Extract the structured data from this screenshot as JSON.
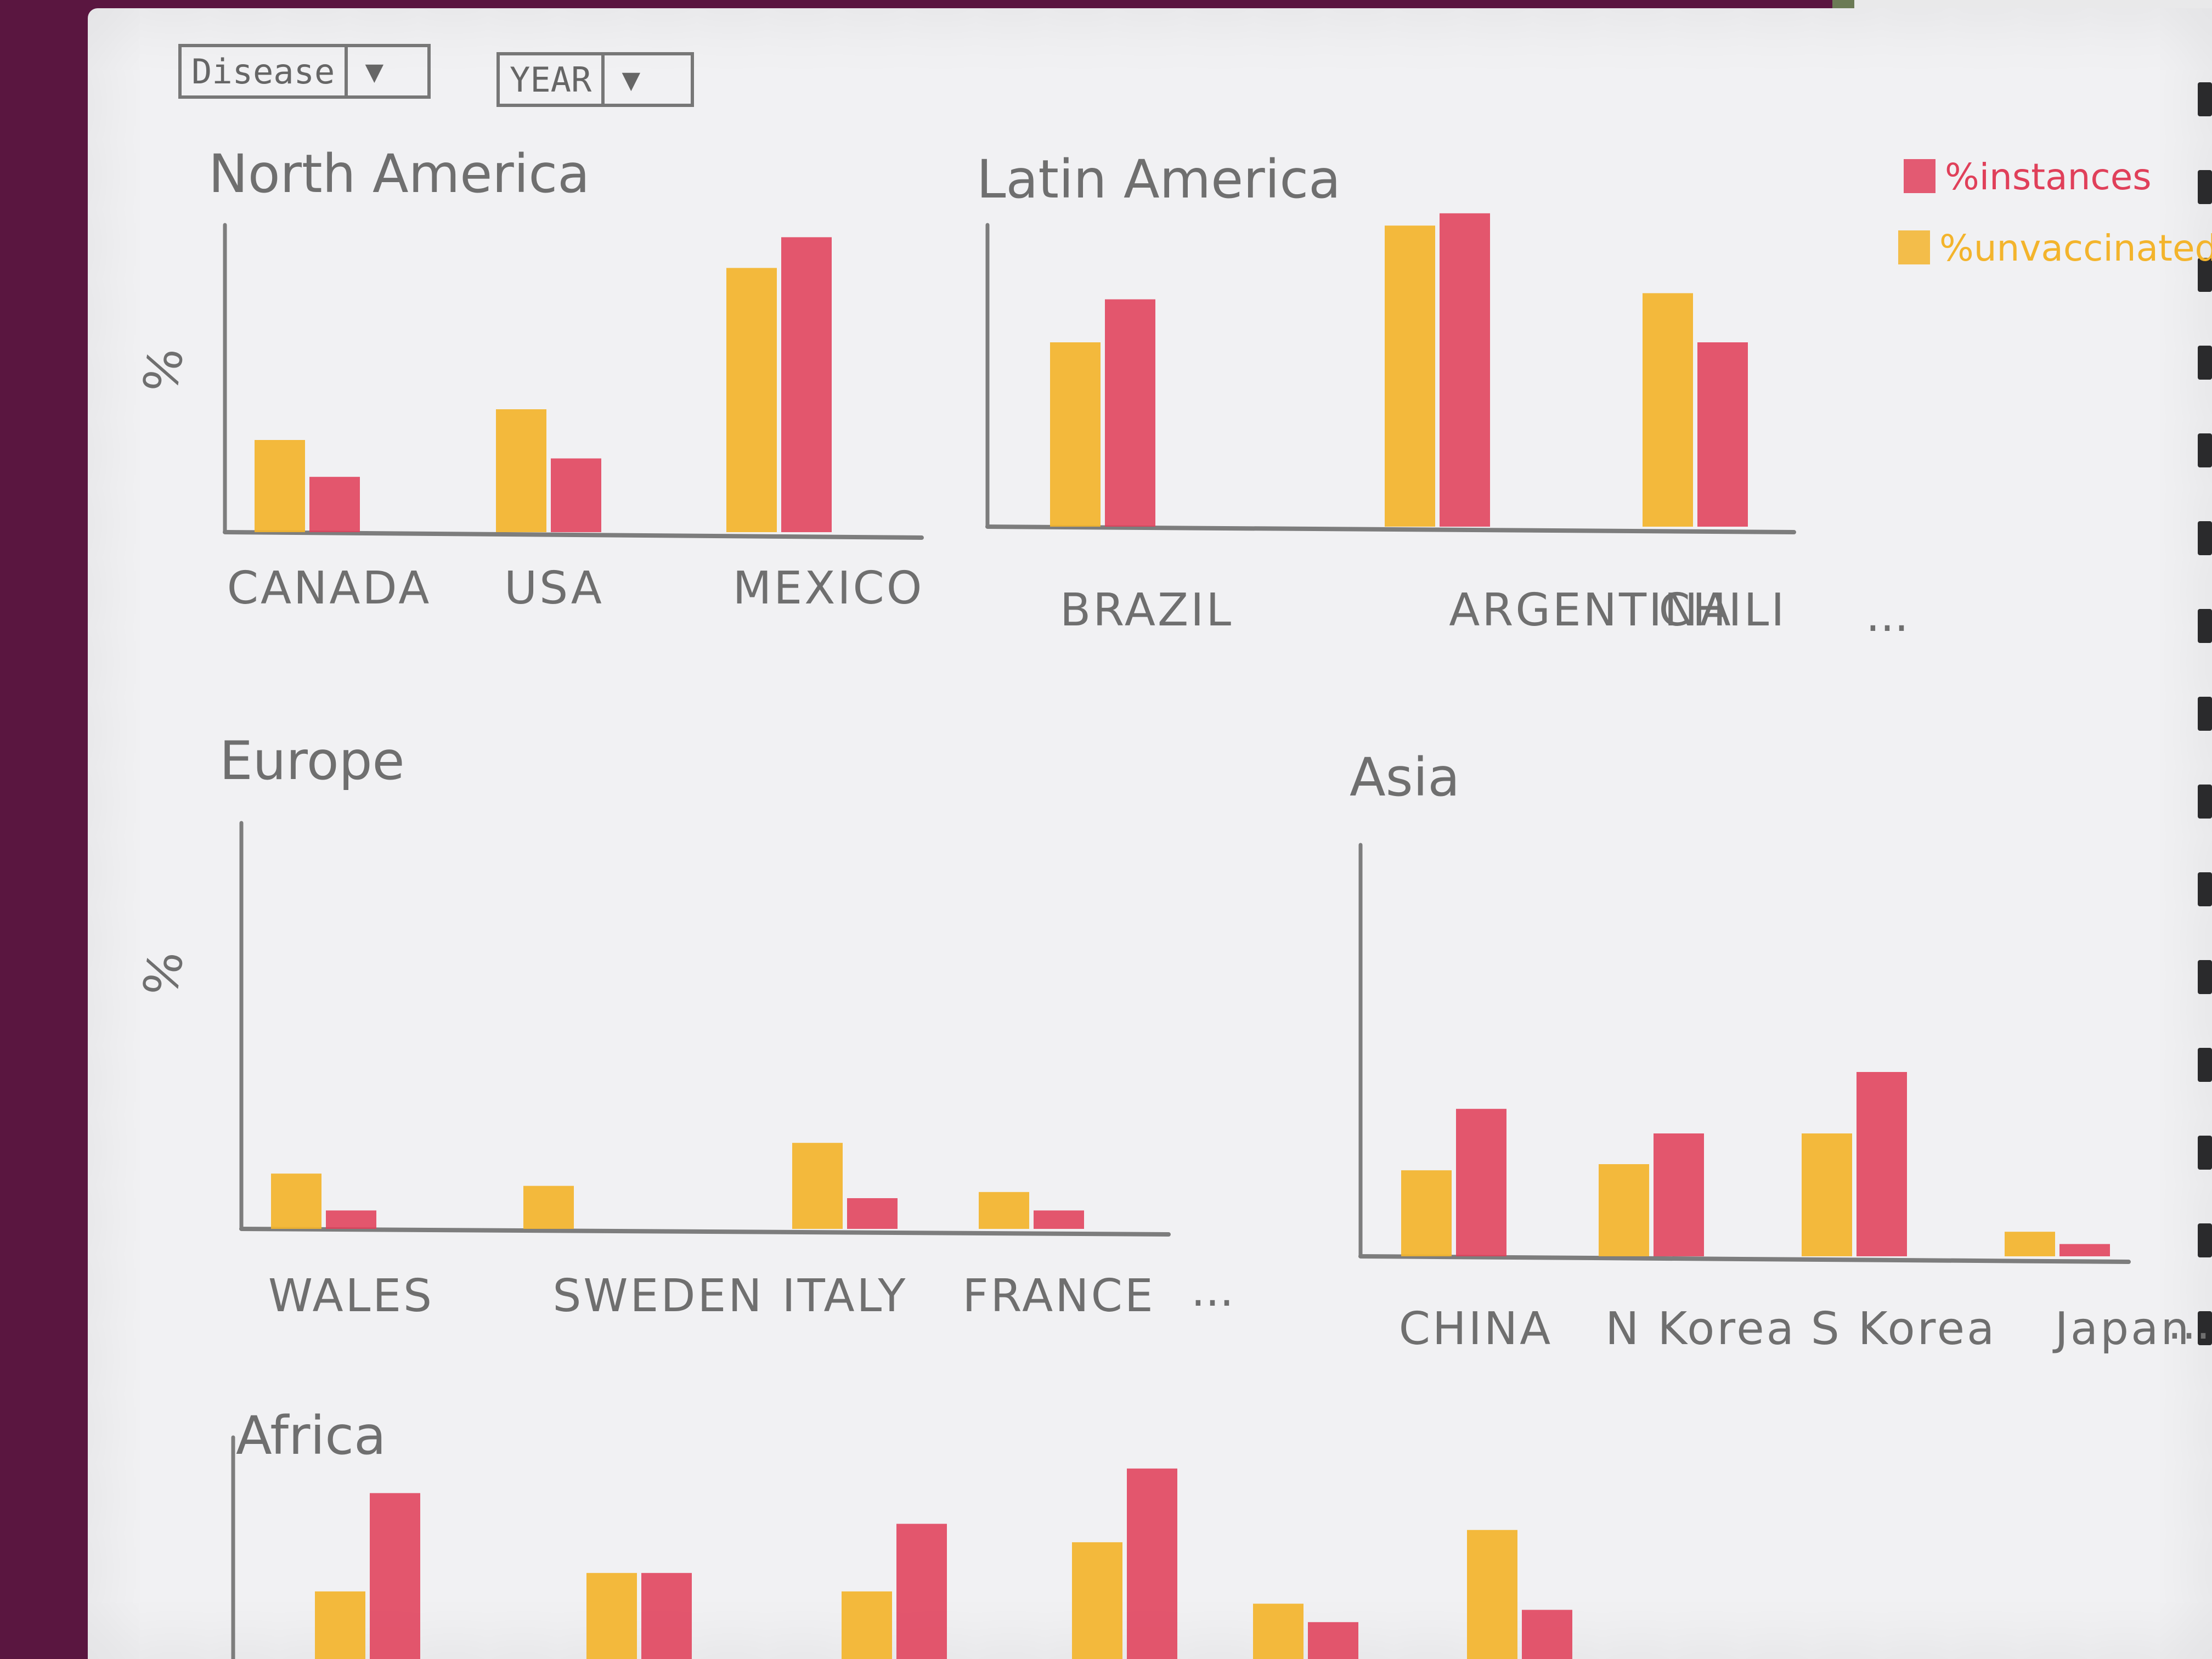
{
  "controls": {
    "disease_label": "Disease",
    "year_label": "YEAR",
    "dropdown_icon": "triangle-down"
  },
  "legend": {
    "items": [
      {
        "label": "%instances",
        "color": "#e0405a"
      },
      {
        "label": "%unvaccinated",
        "color": "#f3b42c"
      }
    ]
  },
  "colors": {
    "yellow": "#f3b42c",
    "red": "#e0405a",
    "axis": "#7d7d7d",
    "ink": "#6f6f6f"
  },
  "chart_data": [
    {
      "type": "bar",
      "title": "North America",
      "ylabel": "%",
      "categories": [
        "CANADA",
        "USA",
        "MEXICO"
      ],
      "series": [
        {
          "name": "%unvaccinated",
          "values": [
            15,
            20,
            43
          ]
        },
        {
          "name": "%instances",
          "values": [
            9,
            12,
            48
          ]
        }
      ],
      "ylim": [
        0,
        100
      ],
      "trailing": ""
    },
    {
      "type": "bar",
      "title": "Latin America",
      "ylabel": "",
      "categories": [
        "BRAZIL",
        "ARGENTINA",
        "CHILI"
      ],
      "series": [
        {
          "name": "%unvaccinated",
          "values": [
            30,
            49,
            38
          ]
        },
        {
          "name": "%instances",
          "values": [
            37,
            51,
            30
          ]
        }
      ],
      "ylim": [
        0,
        100
      ],
      "trailing": "..."
    },
    {
      "type": "bar",
      "title": "Europe",
      "ylabel": "%",
      "categories": [
        "WALES",
        "SWEDEN",
        "ITALY",
        "FRANCE"
      ],
      "series": [
        {
          "name": "%unvaccinated",
          "values": [
            9,
            7,
            14,
            6
          ]
        },
        {
          "name": "%instances",
          "values": [
            3,
            0,
            5,
            3
          ]
        }
      ],
      "ylim": [
        0,
        100
      ],
      "trailing": "..."
    },
    {
      "type": "bar",
      "title": "Asia",
      "ylabel": "",
      "categories": [
        "CHINA",
        "N Korea",
        "S Korea",
        "Japan"
      ],
      "series": [
        {
          "name": "%unvaccinated",
          "values": [
            14,
            15,
            20,
            4
          ]
        },
        {
          "name": "%instances",
          "values": [
            24,
            20,
            30,
            2
          ]
        }
      ],
      "ylim": [
        0,
        100
      ],
      "trailing": "..."
    },
    {
      "type": "bar",
      "title": "Africa",
      "ylabel": "",
      "categories": [
        "",
        "",
        "",
        "",
        "",
        ""
      ],
      "series": [
        {
          "name": "%unvaccinated",
          "values": [
            11,
            14,
            11,
            19,
            9,
            21
          ]
        },
        {
          "name": "%instances",
          "values": [
            27,
            14,
            22,
            31,
            6,
            8
          ]
        }
      ],
      "ylim": [
        0,
        100
      ],
      "trailing": ""
    }
  ]
}
